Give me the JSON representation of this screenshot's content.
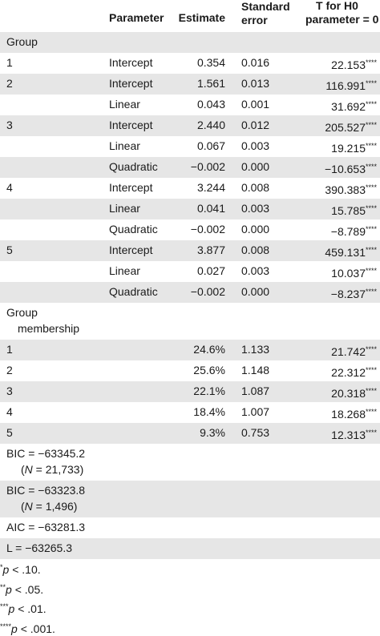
{
  "table": {
    "headers": {
      "parameter": "Parameter",
      "estimate": "Estimate",
      "stderr_line1": "Standard",
      "stderr_line2": "error",
      "t_line1": "T for H0",
      "t_line2": "parameter = 0"
    },
    "section_group": "Group",
    "group_rows": [
      {
        "group": "1",
        "parameter": "Intercept",
        "estimate": "0.354",
        "se": "0.016",
        "t": "22.153",
        "stars": "****"
      },
      {
        "group": "2",
        "parameter": "Intercept",
        "estimate": "1.561",
        "se": "0.013",
        "t": "116.991",
        "stars": "****"
      },
      {
        "group": "",
        "parameter": "Linear",
        "estimate": "0.043",
        "se": "0.001",
        "t": "31.692",
        "stars": "****"
      },
      {
        "group": "3",
        "parameter": "Intercept",
        "estimate": "2.440",
        "se": "0.012",
        "t": "205.527",
        "stars": "****"
      },
      {
        "group": "",
        "parameter": "Linear",
        "estimate": "0.067",
        "se": "0.003",
        "t": "19.215",
        "stars": "****"
      },
      {
        "group": "",
        "parameter": "Quadratic",
        "estimate": "−0.002",
        "se": "0.000",
        "t": "−10.653",
        "stars": "****"
      },
      {
        "group": "4",
        "parameter": "Intercept",
        "estimate": "3.244",
        "se": "0.008",
        "t": "390.383",
        "stars": "****"
      },
      {
        "group": "",
        "parameter": "Linear",
        "estimate": "0.041",
        "se": "0.003",
        "t": "15.785",
        "stars": "****"
      },
      {
        "group": "",
        "parameter": "Quadratic",
        "estimate": "−0.002",
        "se": "0.000",
        "t": "−8.789",
        "stars": "****"
      },
      {
        "group": "5",
        "parameter": "Intercept",
        "estimate": "3.877",
        "se": "0.008",
        "t": "459.131",
        "stars": "****"
      },
      {
        "group": "",
        "parameter": "Linear",
        "estimate": "0.027",
        "se": "0.003",
        "t": "10.037",
        "stars": "****"
      },
      {
        "group": "",
        "parameter": "Quadratic",
        "estimate": "−0.002",
        "se": "0.000",
        "t": "−8.237",
        "stars": "****"
      }
    ],
    "section_membership_line1": "Group",
    "section_membership_line2": "membership",
    "membership_rows": [
      {
        "group": "1",
        "estimate": "24.6%",
        "se": "1.133",
        "t": "21.742",
        "stars": "****"
      },
      {
        "group": "2",
        "estimate": "25.6%",
        "se": "1.148",
        "t": "22.312",
        "stars": "****"
      },
      {
        "group": "3",
        "estimate": "22.1%",
        "se": "1.087",
        "t": "20.318",
        "stars": "****"
      },
      {
        "group": "4",
        "estimate": "18.4%",
        "se": "1.007",
        "t": "18.268",
        "stars": "****"
      },
      {
        "group": "5",
        "estimate": "9.3%",
        "se": "0.753",
        "t": "12.313",
        "stars": "****"
      }
    ],
    "fit_stats": [
      {
        "line1": "BIC = −63345.2",
        "n_open": "(",
        "n_sym": "N",
        "n_rest": " = 21,733)"
      },
      {
        "line1": "BIC = −63323.8",
        "n_open": "(",
        "n_sym": "N",
        "n_rest": " = 1,496)"
      },
      {
        "line1": "AIC = −63281.3"
      },
      {
        "line1": "L = −63265.3"
      }
    ]
  },
  "notes": [
    {
      "stars": "*",
      "sym": "p",
      "rest": " < .10."
    },
    {
      "stars": "**",
      "sym": "p",
      "rest": " < .05."
    },
    {
      "stars": "***",
      "sym": "p",
      "rest": " < .01."
    },
    {
      "stars": "****",
      "sym": "p",
      "rest": " < .001."
    }
  ],
  "colors": {
    "row_shade": "#e6e6e6",
    "text": "#1a1a1a",
    "background": "#ffffff"
  }
}
